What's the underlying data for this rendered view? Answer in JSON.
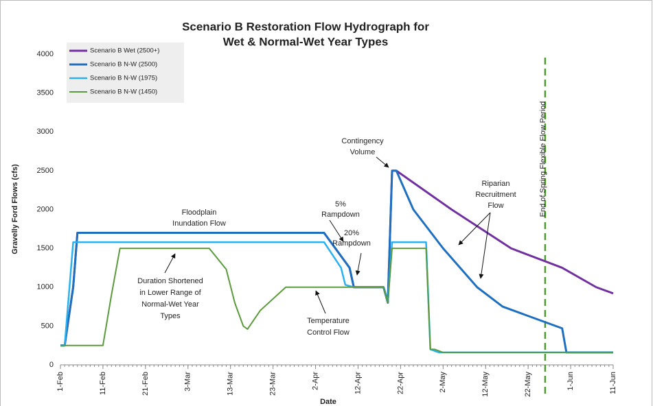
{
  "chart_data": {
    "type": "line",
    "title": [
      "Scenario B Restoration Flow Hydrograph for",
      "Wet & Normal-Wet Year Types"
    ],
    "x_label": "Date",
    "y_label": "Gravelly Ford Flows (cfs)",
    "xlim": [
      "1-Feb",
      "11-Jun"
    ],
    "xticks": [
      "1-Feb",
      "11-Feb",
      "21-Feb",
      "3-Mar",
      "13-Mar",
      "23-Mar",
      "2-Apr",
      "12-Apr",
      "22-Apr",
      "2-May",
      "12-May",
      "22-May",
      "1-Jun",
      "11-Jun"
    ],
    "ylim": [
      0,
      4000
    ],
    "yticks": [
      0,
      500,
      1000,
      1500,
      2000,
      2500,
      3000,
      3500,
      4000
    ],
    "grid": false,
    "legend": "top-left",
    "series": [
      {
        "name": "Scenario B Wet (2500+)",
        "color": "#7030a0",
        "x": [
          "1-Feb",
          "2-Feb",
          "4-Feb",
          "5-Feb",
          "4-Apr",
          "10-Apr",
          "11-Apr",
          "18-Apr",
          "19-Apr",
          "20-Apr",
          "21-Apr",
          "4-May",
          "18-May",
          "30-May",
          "7-Jun",
          "11-Jun"
        ],
        "values": [
          250,
          250,
          1000,
          1700,
          1700,
          1250,
          1000,
          1000,
          800,
          2500,
          2500,
          2000,
          1500,
          1250,
          1000,
          920
        ]
      },
      {
        "name": "Scenario B N-W (2500)",
        "color": "#1f6fc0",
        "x": [
          "1-Feb",
          "2-Feb",
          "4-Feb",
          "5-Feb",
          "4-Apr",
          "10-Apr",
          "11-Apr",
          "18-Apr",
          "19-Apr",
          "20-Apr",
          "21-Apr",
          "25-Apr",
          "2-May",
          "10-May",
          "16-May",
          "30-May",
          "31-May",
          "11-Jun"
        ],
        "values": [
          250,
          250,
          1000,
          1700,
          1700,
          1250,
          1000,
          1000,
          800,
          2500,
          2500,
          2000,
          1500,
          1000,
          750,
          470,
          160,
          160
        ]
      },
      {
        "name": "Scenario B N-W (1975)",
        "color": "#2ab0ee",
        "x": [
          "1-Feb",
          "2-Feb",
          "4-Feb",
          "4-Apr",
          "8-Apr",
          "9-Apr",
          "11-Apr",
          "18-Apr",
          "19-Apr",
          "20-Apr",
          "28-Apr",
          "29-Apr",
          "1-May",
          "11-Jun"
        ],
        "values": [
          250,
          250,
          1580,
          1580,
          1250,
          1030,
          1000,
          1000,
          800,
          1580,
          1580,
          200,
          160,
          160
        ]
      },
      {
        "name": "Scenario B N-W (1450)",
        "color": "#5a9a3c",
        "x": [
          "1-Feb",
          "11-Feb",
          "13-Feb",
          "15-Feb",
          "8-Mar",
          "12-Mar",
          "14-Mar",
          "16-Mar",
          "17-Mar",
          "20-Mar",
          "26-Mar",
          "18-Apr",
          "19-Apr",
          "20-Apr",
          "28-Apr",
          "29-Apr",
          "30-Apr",
          "2-May",
          "11-Jun"
        ],
        "values": [
          250,
          250,
          900,
          1500,
          1500,
          1230,
          800,
          500,
          460,
          700,
          1000,
          1000,
          800,
          1500,
          1500,
          200,
          200,
          160,
          160
        ]
      }
    ],
    "vline": {
      "x": "26-May",
      "color": "#4f9a2f",
      "label": "End of Spring Flexible Flow Period"
    },
    "annotations": [
      {
        "text": [
          "Floodplain",
          "Inundation Flow"
        ]
      },
      {
        "text": [
          "5%",
          "Rampdown"
        ]
      },
      {
        "text": [
          "20%",
          "Rampdown"
        ]
      },
      {
        "text": [
          "Contingency",
          "Volume"
        ]
      },
      {
        "text": [
          "Riparian",
          "Recruitment",
          "Flow"
        ]
      },
      {
        "text": [
          "Duration Shortened",
          "in Lower Range of",
          "Normal-Wet Year",
          "Types"
        ]
      },
      {
        "text": [
          "Temperature",
          "Control Flow"
        ]
      }
    ]
  }
}
